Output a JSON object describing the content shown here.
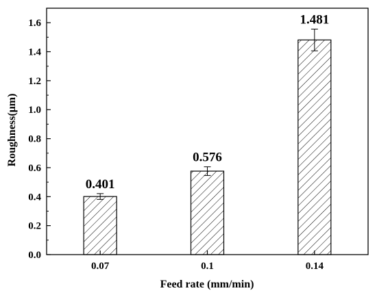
{
  "chart_data": {
    "type": "bar",
    "title": "",
    "xlabel": "Feed rate (mm/min)",
    "ylabel": "Roughness(μm)",
    "categories": [
      "0.07",
      "0.1",
      "0.14"
    ],
    "values": [
      0.401,
      0.576,
      1.481
    ],
    "data_labels": [
      "0.401",
      "0.576",
      "1.481"
    ],
    "error": [
      0.02,
      0.03,
      0.075
    ],
    "ylim": [
      0.0,
      1.7
    ],
    "yticks": [
      0.0,
      0.2,
      0.4,
      0.6,
      0.8,
      1.0,
      1.2,
      1.4,
      1.6
    ],
    "ytick_labels": [
      "0.0",
      "0.2",
      "0.4",
      "0.6",
      "0.8",
      "1.0",
      "1.2",
      "1.4",
      "1.6"
    ],
    "bar_fill": "hatched",
    "grid": false,
    "colors": {
      "bar_stroke": "#000000",
      "hatch": "#000000",
      "background": "#ffffff"
    }
  }
}
